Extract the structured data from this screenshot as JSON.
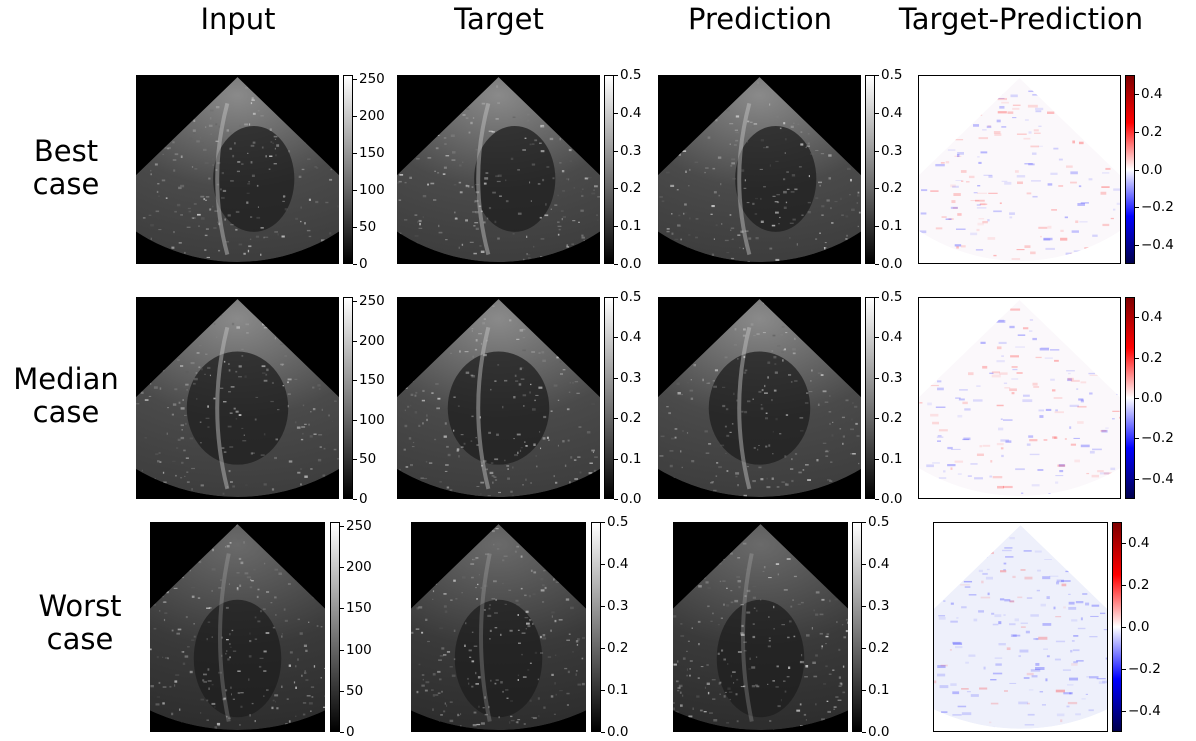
{
  "columns": [
    "Input",
    "Target",
    "Prediction",
    "Target-Prediction"
  ],
  "rows": [
    {
      "line1": "Best",
      "line2": "case"
    },
    {
      "line1": "Median",
      "line2": "case"
    },
    {
      "line1": "Worst",
      "line2": "case"
    }
  ],
  "colorbars": {
    "input": {
      "colormap": "gray",
      "range": [
        0,
        255
      ],
      "ticks": [
        "0",
        "50",
        "100",
        "150",
        "200",
        "250"
      ],
      "tick_values": [
        0,
        50,
        100,
        150,
        200,
        250
      ]
    },
    "intensity": {
      "colormap": "gray",
      "range": [
        0.0,
        0.5
      ],
      "ticks": [
        "0.0",
        "0.1",
        "0.2",
        "0.3",
        "0.4",
        "0.5"
      ],
      "tick_values": [
        0.0,
        0.1,
        0.2,
        0.3,
        0.4,
        0.5
      ]
    },
    "difference": {
      "colormap": "seismic",
      "range": [
        -0.5,
        0.5
      ],
      "ticks": [
        "−0.4",
        "−0.2",
        "0.0",
        "0.2",
        "0.4"
      ],
      "tick_values": [
        -0.4,
        -0.2,
        0.0,
        0.2,
        0.4
      ]
    }
  },
  "colors": {
    "diff_negative": "#0000ff",
    "diff_positive": "#ff0000",
    "image_background": "#000000"
  }
}
